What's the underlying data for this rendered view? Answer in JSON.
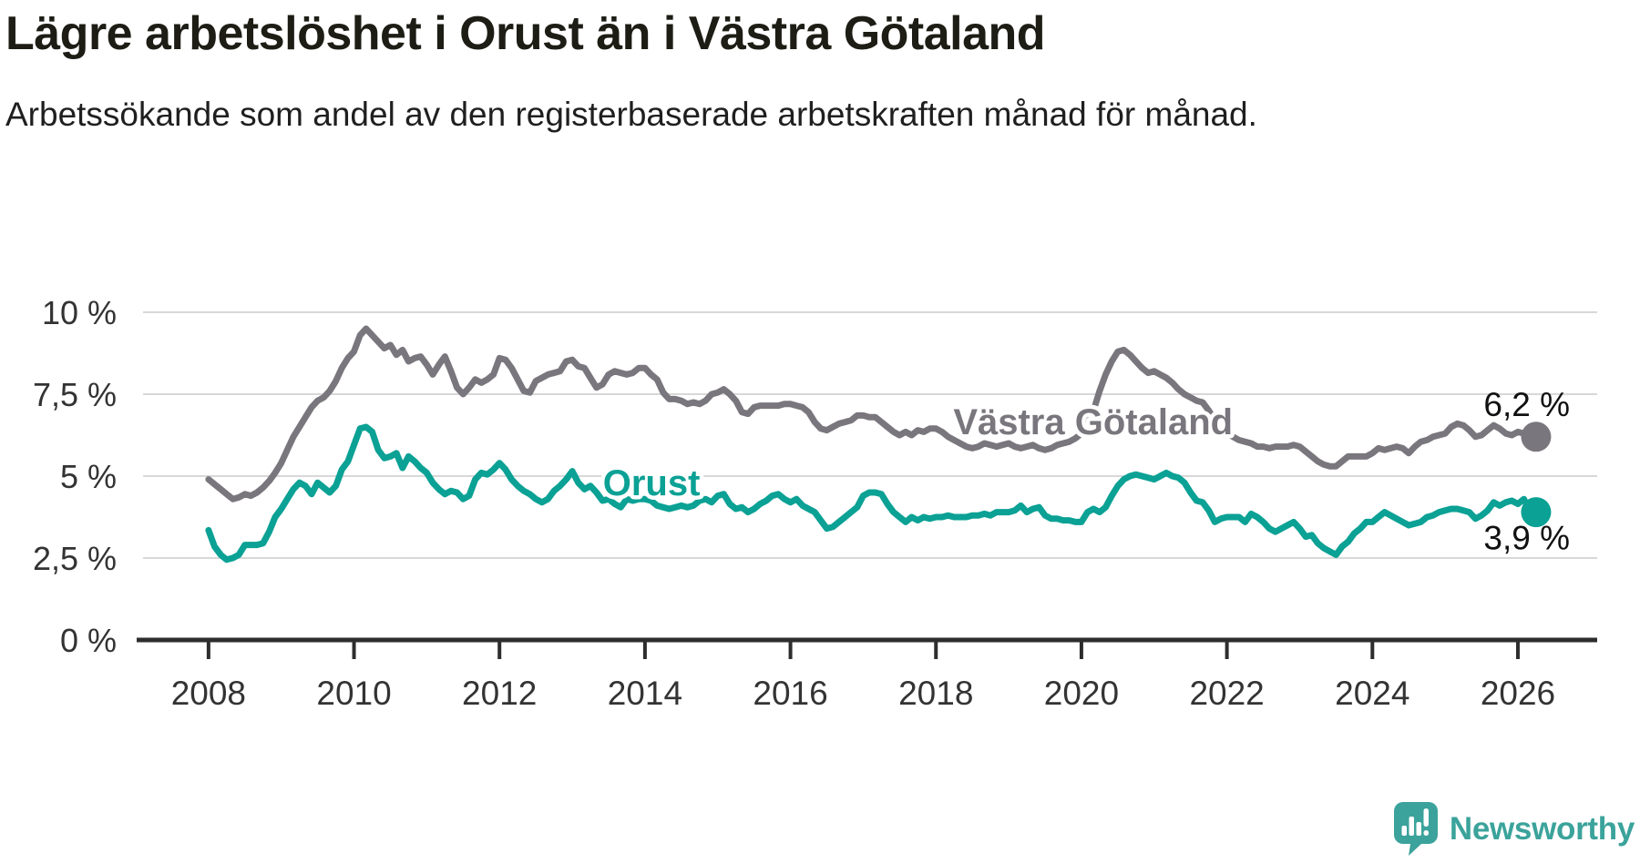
{
  "header": {
    "title": "Lägre arbetslöshet i Orust än i Västra Götaland",
    "subtitle": "Arbetssökande som andel av den registerbaserade arbetskraften månad för månad."
  },
  "colors": {
    "title": "#1d1d15",
    "axis": "#2d2d2d",
    "tick_label": "#333333",
    "grid": "#d8d8d8",
    "end_label": "#111111",
    "vastra_gotaland": "#7a767d",
    "orust": "#0ba195",
    "brand": "#3ba39b"
  },
  "chart_data": {
    "type": "line",
    "title": "Lägre arbetslöshet i Orust än i Västra Götaland",
    "subtitle": "Arbetssökande som andel av den registerbaserade arbetskraften månad för månad.",
    "unit": "%",
    "grid": true,
    "x_start_year": 2008,
    "x_step_months": 1,
    "xlim": [
      2007.1,
      2027.09
    ],
    "ylim": [
      0,
      10
    ],
    "x_ticks": [
      2008,
      2010,
      2012,
      2014,
      2016,
      2018,
      2020,
      2022,
      2024,
      2026
    ],
    "y_ticks": [
      {
        "value": 0,
        "label": "0 %"
      },
      {
        "value": 2.5,
        "label": "2,5 %"
      },
      {
        "value": 5,
        "label": "5 %"
      },
      {
        "value": 7.5,
        "label": "7,5 %"
      },
      {
        "value": 10,
        "label": "10 %"
      }
    ],
    "series": [
      {
        "name": "Västra Götaland",
        "color": "#7a767d",
        "end_label": "6,2 %",
        "end_value": 6.2,
        "label_x": 2020.16,
        "label_y": 6.67,
        "values": [
          4.9,
          4.75,
          4.6,
          4.45,
          4.3,
          4.35,
          4.45,
          4.4,
          4.5,
          4.65,
          4.85,
          5.1,
          5.4,
          5.8,
          6.2,
          6.5,
          6.8,
          7.1,
          7.3,
          7.4,
          7.6,
          7.9,
          8.3,
          8.6,
          8.8,
          9.3,
          9.5,
          9.3,
          9.1,
          8.9,
          9.0,
          8.7,
          8.85,
          8.5,
          8.6,
          8.65,
          8.4,
          8.1,
          8.4,
          8.65,
          8.2,
          7.7,
          7.5,
          7.7,
          7.95,
          7.85,
          7.95,
          8.1,
          8.6,
          8.55,
          8.3,
          7.95,
          7.6,
          7.55,
          7.9,
          8.0,
          8.1,
          8.15,
          8.2,
          8.5,
          8.55,
          8.35,
          8.3,
          8.0,
          7.7,
          7.8,
          8.1,
          8.2,
          8.15,
          8.1,
          8.15,
          8.3,
          8.3,
          8.1,
          7.95,
          7.55,
          7.35,
          7.35,
          7.3,
          7.2,
          7.25,
          7.2,
          7.3,
          7.5,
          7.55,
          7.65,
          7.5,
          7.3,
          6.95,
          6.9,
          7.1,
          7.15,
          7.15,
          7.15,
          7.15,
          7.2,
          7.2,
          7.15,
          7.1,
          6.95,
          6.65,
          6.45,
          6.4,
          6.5,
          6.6,
          6.65,
          6.7,
          6.85,
          6.85,
          6.8,
          6.8,
          6.65,
          6.5,
          6.35,
          6.25,
          6.35,
          6.25,
          6.4,
          6.35,
          6.45,
          6.45,
          6.35,
          6.2,
          6.1,
          6.0,
          5.9,
          5.85,
          5.9,
          6.0,
          5.95,
          5.9,
          5.95,
          6.0,
          5.9,
          5.85,
          5.9,
          5.95,
          5.85,
          5.8,
          5.85,
          5.95,
          6.0,
          6.05,
          6.15,
          6.3,
          6.6,
          7.0,
          7.6,
          8.1,
          8.5,
          8.8,
          8.85,
          8.7,
          8.5,
          8.3,
          8.15,
          8.2,
          8.1,
          8.0,
          7.85,
          7.65,
          7.5,
          7.4,
          7.3,
          7.25,
          7.0,
          6.7,
          6.4,
          6.3,
          6.2,
          6.1,
          6.05,
          6.0,
          5.9,
          5.9,
          5.85,
          5.9,
          5.9,
          5.9,
          5.95,
          5.9,
          5.75,
          5.6,
          5.45,
          5.35,
          5.3,
          5.3,
          5.45,
          5.6,
          5.6,
          5.6,
          5.6,
          5.7,
          5.85,
          5.8,
          5.85,
          5.9,
          5.85,
          5.7,
          5.9,
          6.05,
          6.1,
          6.2,
          6.25,
          6.3,
          6.5,
          6.6,
          6.55,
          6.4,
          6.2,
          6.25,
          6.4,
          6.55,
          6.45,
          6.3,
          6.25,
          6.35,
          6.3,
          6.2,
          6.2
        ]
      },
      {
        "name": "Orust",
        "color": "#0ba195",
        "end_label": "3,9 %",
        "end_value": 3.9,
        "label_x": 2014.09,
        "label_y": 4.8,
        "values": [
          3.35,
          2.85,
          2.6,
          2.45,
          2.5,
          2.6,
          2.9,
          2.9,
          2.9,
          2.95,
          3.3,
          3.75,
          4.0,
          4.3,
          4.6,
          4.8,
          4.7,
          4.45,
          4.8,
          4.65,
          4.5,
          4.7,
          5.2,
          5.45,
          5.95,
          6.45,
          6.5,
          6.35,
          5.8,
          5.55,
          5.6,
          5.7,
          5.25,
          5.6,
          5.45,
          5.25,
          5.1,
          4.8,
          4.6,
          4.45,
          4.55,
          4.5,
          4.3,
          4.4,
          4.9,
          5.1,
          5.05,
          5.2,
          5.4,
          5.2,
          4.9,
          4.7,
          4.55,
          4.45,
          4.3,
          4.2,
          4.3,
          4.55,
          4.7,
          4.9,
          5.15,
          4.8,
          4.6,
          4.7,
          4.5,
          4.25,
          4.3,
          4.15,
          4.05,
          4.3,
          4.25,
          4.3,
          4.3,
          4.25,
          4.1,
          4.05,
          4.0,
          4.05,
          4.1,
          4.05,
          4.1,
          4.25,
          4.3,
          4.2,
          4.4,
          4.45,
          4.15,
          4.0,
          4.05,
          3.9,
          4.0,
          4.15,
          4.25,
          4.4,
          4.45,
          4.3,
          4.2,
          4.3,
          4.1,
          4.0,
          3.9,
          3.65,
          3.4,
          3.45,
          3.6,
          3.75,
          3.9,
          4.05,
          4.4,
          4.5,
          4.5,
          4.45,
          4.15,
          3.9,
          3.75,
          3.6,
          3.75,
          3.65,
          3.75,
          3.7,
          3.75,
          3.75,
          3.8,
          3.75,
          3.75,
          3.75,
          3.8,
          3.8,
          3.85,
          3.8,
          3.9,
          3.9,
          3.9,
          3.95,
          4.1,
          3.9,
          4.0,
          4.05,
          3.8,
          3.7,
          3.7,
          3.65,
          3.65,
          3.6,
          3.6,
          3.9,
          4.0,
          3.9,
          4.05,
          4.4,
          4.7,
          4.9,
          5.0,
          5.05,
          5.0,
          4.95,
          4.9,
          5.0,
          5.1,
          5.0,
          4.95,
          4.8,
          4.5,
          4.25,
          4.2,
          3.95,
          3.6,
          3.7,
          3.75,
          3.75,
          3.75,
          3.6,
          3.85,
          3.75,
          3.6,
          3.4,
          3.3,
          3.4,
          3.5,
          3.6,
          3.4,
          3.15,
          3.2,
          2.95,
          2.8,
          2.7,
          2.6,
          2.85,
          3.0,
          3.25,
          3.4,
          3.6,
          3.6,
          3.75,
          3.9,
          3.8,
          3.7,
          3.6,
          3.5,
          3.55,
          3.6,
          3.75,
          3.8,
          3.9,
          3.95,
          4.0,
          4.0,
          3.95,
          3.9,
          3.7,
          3.8,
          3.95,
          4.2,
          4.1,
          4.2,
          4.25,
          4.15,
          4.3,
          3.9,
          3.9
        ]
      }
    ]
  },
  "footer": {
    "brand": "Newsworthy"
  }
}
